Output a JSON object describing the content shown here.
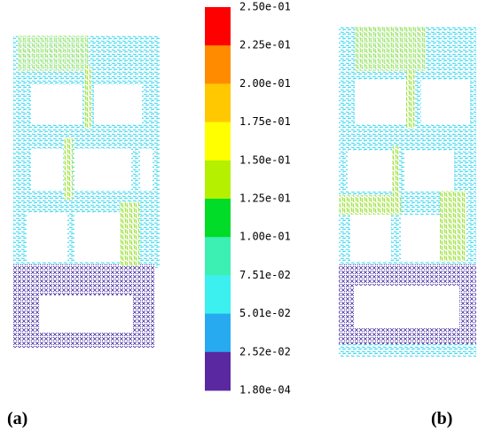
{
  "colorbar": {
    "labels": [
      "2.50e-01",
      "2.25e-01",
      "2.00e-01",
      "1.75e-01",
      "1.50e-01",
      "1.25e-01",
      "1.00e-01",
      "7.51e-02",
      "5.01e-02",
      "2.52e-02",
      "1.80e-04"
    ],
    "colors": [
      "#ff0000",
      "#ff8c00",
      "#ffc800",
      "#ffff00",
      "#b4f000",
      "#00dc28",
      "#3cf0b4",
      "#3cf0f0",
      "#28aaf0",
      "#5a28a0"
    ]
  },
  "panels": [
    {
      "label": "(a)"
    },
    {
      "label": "(b)"
    }
  ]
}
